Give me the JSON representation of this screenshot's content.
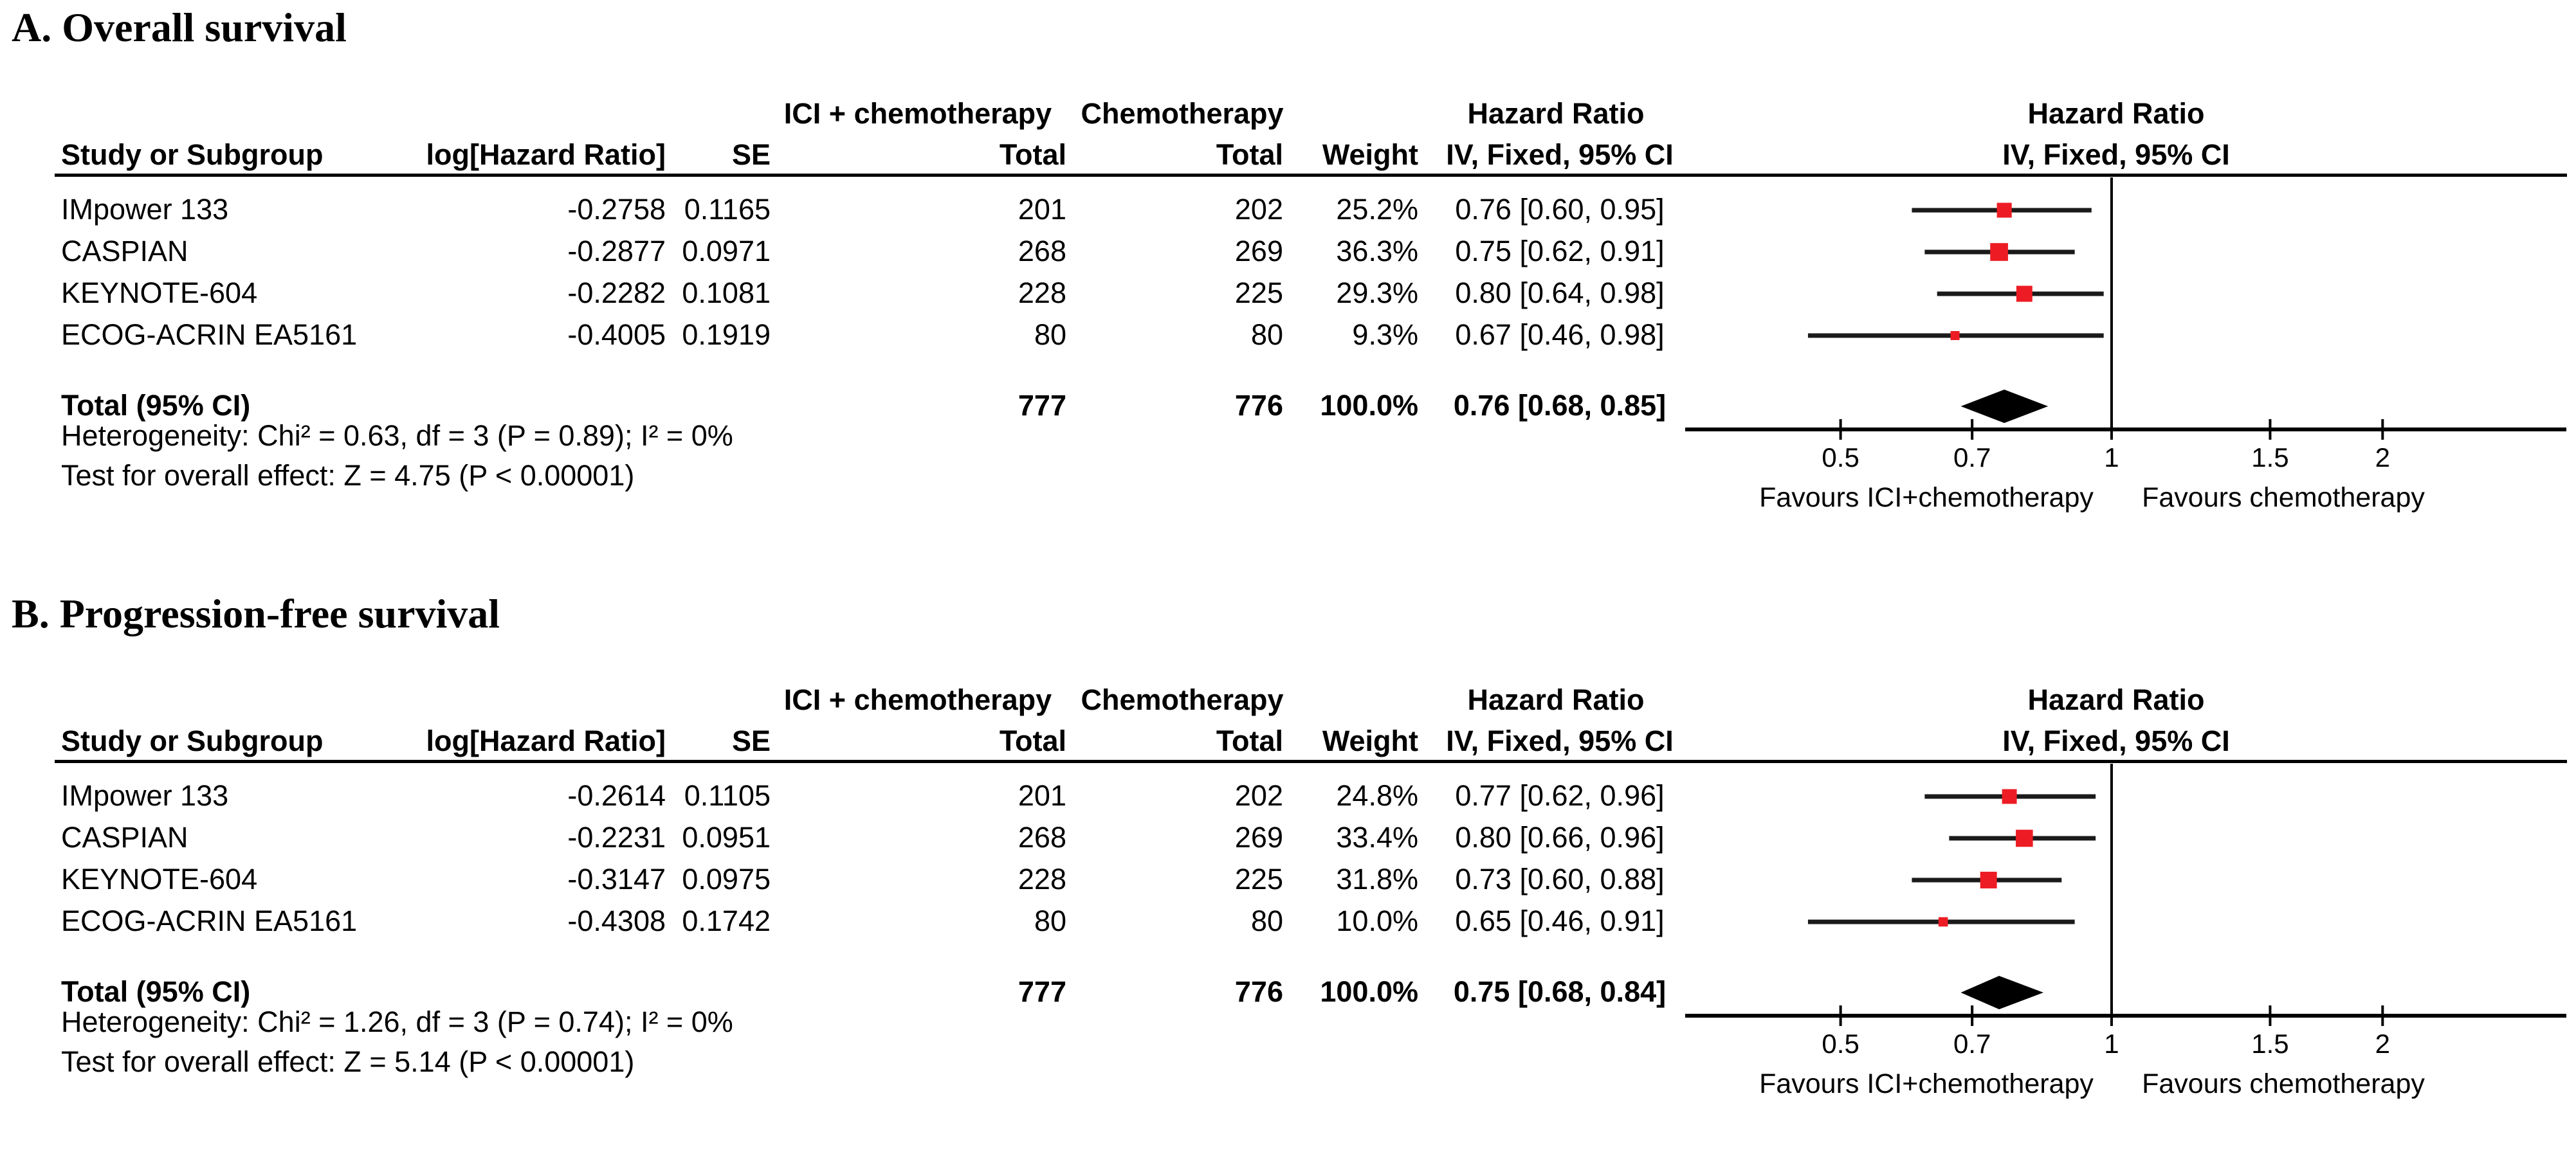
{
  "figure": {
    "background": "#ffffff",
    "marker_color": "#ED1C24",
    "diamond_color": "#000000",
    "line_color": "#000000",
    "ci_line_color": "#1a1a1a"
  },
  "headers": {
    "group1": "ICI + chemotherapy",
    "group2": "Chemotherapy",
    "hazard_ratio": "Hazard Ratio",
    "study": "Study or Subgroup",
    "loghr": "log[Hazard Ratio]",
    "se": "SE",
    "total": "Total",
    "weight": "Weight",
    "ci_method": "IV, Fixed, 95% CI"
  },
  "sections": [
    {
      "panel": "A",
      "title": "A. Overall survival",
      "rows": [
        {
          "study": "IMpower 133",
          "loghr": "-0.2758",
          "se": "0.1165",
          "total1": "201",
          "total2": "202",
          "weight": "25.2%",
          "ci_text": "0.76 [0.60, 0.95]"
        },
        {
          "study": "CASPIAN",
          "loghr": "-0.2877",
          "se": "0.0971",
          "total1": "268",
          "total2": "269",
          "weight": "36.3%",
          "ci_text": "0.75 [0.62, 0.91]"
        },
        {
          "study": "KEYNOTE-604",
          "loghr": "-0.2282",
          "se": "0.1081",
          "total1": "228",
          "total2": "225",
          "weight": "29.3%",
          "ci_text": "0.80 [0.64, 0.98]"
        },
        {
          "study": "ECOG-ACRIN EA5161",
          "loghr": "-0.4005",
          "se": "0.1919",
          "total1": "80",
          "total2": "80",
          "weight": "9.3%",
          "ci_text": "0.67 [0.46, 0.98]"
        }
      ],
      "total": {
        "label": "Total (95% CI)",
        "total1": "777",
        "total2": "776",
        "weight": "100.0%",
        "ci_text": "0.76 [0.68, 0.85]"
      },
      "heterogeneity": "Heterogeneity: Chi² = 0.63, df = 3 (P = 0.89); I² = 0%",
      "overall_effect": "Test for overall effect: Z = 4.75 (P < 0.00001)"
    },
    {
      "panel": "B",
      "title": "B. Progression-free survival",
      "rows": [
        {
          "study": "IMpower 133",
          "loghr": "-0.2614",
          "se": "0.1105",
          "total1": "201",
          "total2": "202",
          "weight": "24.8%",
          "ci_text": "0.77 [0.62, 0.96]"
        },
        {
          "study": "CASPIAN",
          "loghr": "-0.2231",
          "se": "0.0951",
          "total1": "268",
          "total2": "269",
          "weight": "33.4%",
          "ci_text": "0.80 [0.66, 0.96]"
        },
        {
          "study": "KEYNOTE-604",
          "loghr": "-0.3147",
          "se": "0.0975",
          "total1": "228",
          "total2": "225",
          "weight": "31.8%",
          "ci_text": "0.73 [0.60, 0.88]"
        },
        {
          "study": "ECOG-ACRIN EA5161",
          "loghr": "-0.4308",
          "se": "0.1742",
          "total1": "80",
          "total2": "80",
          "weight": "10.0%",
          "ci_text": "0.65 [0.46, 0.91]"
        }
      ],
      "total": {
        "label": "Total (95% CI)",
        "total1": "777",
        "total2": "776",
        "weight": "100.0%",
        "ci_text": "0.75 [0.68, 0.84]"
      },
      "heterogeneity": "Heterogeneity: Chi² = 1.26, df = 3 (P = 0.74); I² = 0%",
      "overall_effect": "Test for overall effect: Z = 5.14 (P < 0.00001)"
    }
  ],
  "chart_data": [
    {
      "type": "scatter",
      "subtype": "forest",
      "title": "A. Overall survival",
      "effect_measure": "Hazard Ratio",
      "model": "IV, Fixed, 95% CI",
      "x_scale": "log",
      "xlim": [
        0.336,
        3.2
      ],
      "null_line": 1,
      "ticks": [
        0.5,
        0.7,
        1,
        1.5,
        2
      ],
      "tick_labels": [
        "0.5",
        "0.7",
        "1",
        "1.5",
        "2"
      ],
      "favours_left": "Favours ICI+chemotherapy",
      "favours_right": "Favours chemotherapy",
      "studies": [
        {
          "name": "IMpower 133",
          "hr": 0.76,
          "ci": [
            0.6,
            0.95
          ],
          "weight": 25.2
        },
        {
          "name": "CASPIAN",
          "hr": 0.75,
          "ci": [
            0.62,
            0.91
          ],
          "weight": 36.3
        },
        {
          "name": "KEYNOTE-604",
          "hr": 0.8,
          "ci": [
            0.64,
            0.98
          ],
          "weight": 29.3
        },
        {
          "name": "ECOG-ACRIN EA5161",
          "hr": 0.67,
          "ci": [
            0.46,
            0.98
          ],
          "weight": 9.3
        }
      ],
      "total": {
        "name": "Total (95% CI)",
        "hr": 0.76,
        "ci": [
          0.68,
          0.85
        ],
        "weight": 100.0
      }
    },
    {
      "type": "scatter",
      "subtype": "forest",
      "title": "B. Progression-free survival",
      "effect_measure": "Hazard Ratio",
      "model": "IV, Fixed, 95% CI",
      "x_scale": "log",
      "xlim": [
        0.336,
        3.2
      ],
      "null_line": 1,
      "ticks": [
        0.5,
        0.7,
        1,
        1.5,
        2
      ],
      "tick_labels": [
        "0.5",
        "0.7",
        "1",
        "1.5",
        "2"
      ],
      "favours_left": "Favours ICI+chemotherapy",
      "favours_right": "Favours chemotherapy",
      "studies": [
        {
          "name": "IMpower 133",
          "hr": 0.77,
          "ci": [
            0.62,
            0.96
          ],
          "weight": 24.8
        },
        {
          "name": "CASPIAN",
          "hr": 0.8,
          "ci": [
            0.66,
            0.96
          ],
          "weight": 33.4
        },
        {
          "name": "KEYNOTE-604",
          "hr": 0.73,
          "ci": [
            0.6,
            0.88
          ],
          "weight": 31.8
        },
        {
          "name": "ECOG-ACRIN EA5161",
          "hr": 0.65,
          "ci": [
            0.46,
            0.91
          ],
          "weight": 10.0
        }
      ],
      "total": {
        "name": "Total (95% CI)",
        "hr": 0.75,
        "ci": [
          0.68,
          0.84
        ],
        "weight": 100.0
      }
    }
  ]
}
